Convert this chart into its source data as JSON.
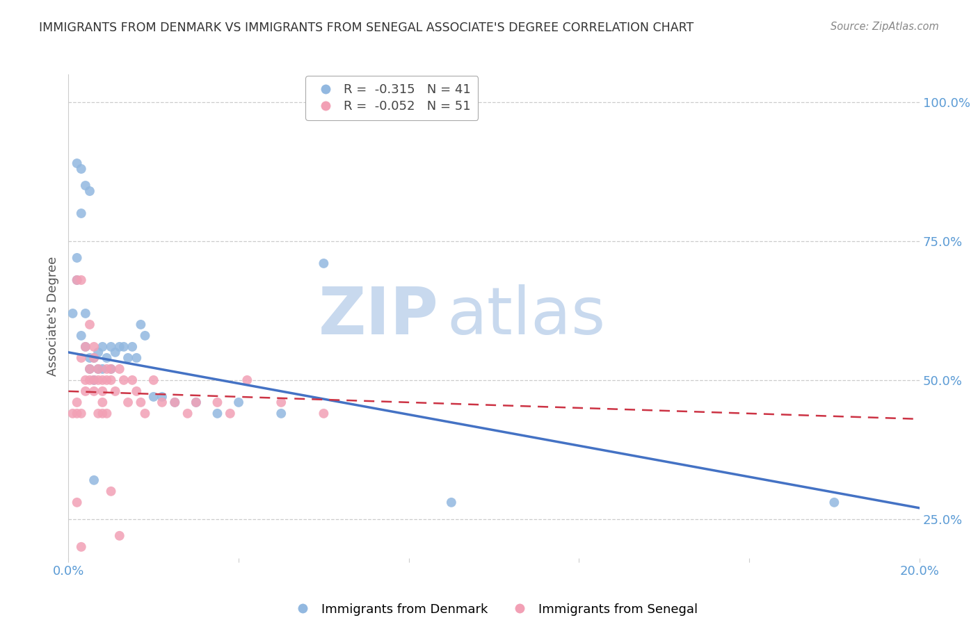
{
  "title": "IMMIGRANTS FROM DENMARK VS IMMIGRANTS FROM SENEGAL ASSOCIATE'S DEGREE CORRELATION CHART",
  "source": "Source: ZipAtlas.com",
  "ylabel": "Associate's Degree",
  "xlim": [
    0.0,
    0.2
  ],
  "ylim": [
    0.18,
    1.05
  ],
  "xticks": [
    0.0,
    0.04,
    0.08,
    0.12,
    0.16,
    0.2
  ],
  "yticks_right": [
    0.25,
    0.5,
    0.75,
    1.0
  ],
  "watermark_zip": "ZIP",
  "watermark_atlas": "atlas",
  "watermark_color": "#c8d9ee",
  "denmark_color": "#92b8e0",
  "senegal_color": "#f2a0b5",
  "denmark_line_color": "#4472c4",
  "senegal_line_color": "#cc3344",
  "denmark_R": -0.315,
  "denmark_N": 41,
  "senegal_R": -0.052,
  "senegal_N": 51,
  "denmark_x": [
    0.001,
    0.002,
    0.002,
    0.003,
    0.003,
    0.004,
    0.004,
    0.005,
    0.005,
    0.006,
    0.006,
    0.007,
    0.007,
    0.008,
    0.008,
    0.009,
    0.01,
    0.01,
    0.011,
    0.012,
    0.013,
    0.014,
    0.015,
    0.016,
    0.017,
    0.018,
    0.02,
    0.022,
    0.025,
    0.03,
    0.035,
    0.04,
    0.05,
    0.06,
    0.09,
    0.18,
    0.002,
    0.003,
    0.004,
    0.005,
    0.006
  ],
  "denmark_y": [
    0.62,
    0.72,
    0.68,
    0.8,
    0.58,
    0.56,
    0.62,
    0.54,
    0.52,
    0.54,
    0.5,
    0.55,
    0.52,
    0.56,
    0.52,
    0.54,
    0.56,
    0.52,
    0.55,
    0.56,
    0.56,
    0.54,
    0.56,
    0.54,
    0.6,
    0.58,
    0.47,
    0.47,
    0.46,
    0.46,
    0.44,
    0.46,
    0.44,
    0.71,
    0.28,
    0.28,
    0.89,
    0.88,
    0.85,
    0.84,
    0.32
  ],
  "senegal_x": [
    0.001,
    0.002,
    0.002,
    0.003,
    0.003,
    0.004,
    0.004,
    0.005,
    0.005,
    0.006,
    0.006,
    0.006,
    0.007,
    0.007,
    0.008,
    0.008,
    0.009,
    0.009,
    0.01,
    0.01,
    0.011,
    0.012,
    0.013,
    0.014,
    0.015,
    0.016,
    0.017,
    0.018,
    0.02,
    0.022,
    0.025,
    0.028,
    0.03,
    0.035,
    0.038,
    0.042,
    0.05,
    0.06,
    0.002,
    0.003,
    0.004,
    0.005,
    0.006,
    0.007,
    0.008,
    0.008,
    0.009,
    0.01,
    0.012,
    0.002,
    0.003
  ],
  "senegal_y": [
    0.44,
    0.46,
    0.44,
    0.68,
    0.44,
    0.5,
    0.48,
    0.52,
    0.5,
    0.54,
    0.5,
    0.48,
    0.52,
    0.5,
    0.5,
    0.48,
    0.52,
    0.5,
    0.52,
    0.5,
    0.48,
    0.52,
    0.5,
    0.46,
    0.5,
    0.48,
    0.46,
    0.44,
    0.5,
    0.46,
    0.46,
    0.44,
    0.46,
    0.46,
    0.44,
    0.5,
    0.46,
    0.44,
    0.68,
    0.54,
    0.56,
    0.6,
    0.56,
    0.44,
    0.44,
    0.46,
    0.44,
    0.3,
    0.22,
    0.28,
    0.2
  ],
  "background_color": "#ffffff",
  "grid_color": "#cccccc",
  "title_color": "#333333",
  "axis_label_color": "#555555",
  "tick_color": "#5b9bd5",
  "source_color": "#888888"
}
